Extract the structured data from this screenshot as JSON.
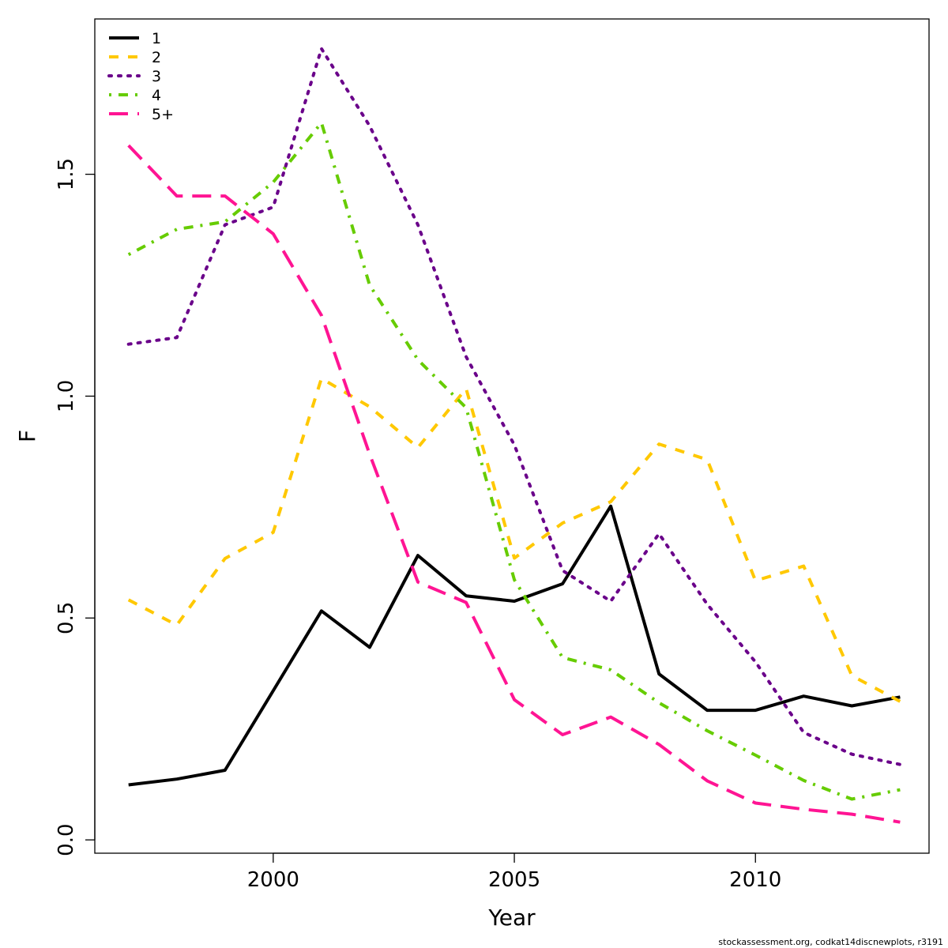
{
  "chart_data": {
    "type": "line",
    "title": "",
    "xlabel": "Year",
    "ylabel": "F",
    "xlim": [
      1996.3,
      2013.6
    ],
    "ylim": [
      -0.03,
      1.85
    ],
    "x_ticks": [
      2000,
      2005,
      2010
    ],
    "y_ticks": [
      0.0,
      0.5,
      1.0,
      1.5
    ],
    "y_tick_labels": [
      "0.0",
      "0.5",
      "1.0",
      "1.5"
    ],
    "legend_position": "top-left",
    "x": [
      1997,
      1998,
      1999,
      2000,
      2001,
      2002,
      2003,
      2004,
      2005,
      2006,
      2007,
      2008,
      2009,
      2010,
      2011,
      2012,
      2013
    ],
    "series": [
      {
        "name": "1",
        "color": "#000000",
        "dash": "solid",
        "values": [
          0.124,
          0.137,
          0.157,
          0.336,
          0.516,
          0.434,
          0.641,
          0.55,
          0.538,
          0.577,
          0.752,
          0.374,
          0.292,
          0.292,
          0.324,
          0.302,
          0.322
        ]
      },
      {
        "name": "2",
        "color": "#FFC800",
        "dash": "dashed",
        "values": [
          0.541,
          0.484,
          0.634,
          0.693,
          1.04,
          0.976,
          0.884,
          1.017,
          0.635,
          0.714,
          0.762,
          0.892,
          0.857,
          0.584,
          0.617,
          0.37,
          0.312
        ]
      },
      {
        "name": "3",
        "color": "#6A008A",
        "dash": "dotted",
        "values": [
          1.117,
          1.132,
          1.386,
          1.426,
          1.783,
          1.609,
          1.386,
          1.089,
          0.89,
          0.607,
          0.538,
          0.69,
          0.531,
          0.401,
          0.242,
          0.193,
          0.17
        ]
      },
      {
        "name": "4",
        "color": "#66CC00",
        "dash": "dotdash",
        "values": [
          1.319,
          1.376,
          1.393,
          1.482,
          1.616,
          1.25,
          1.082,
          0.974,
          0.586,
          0.411,
          0.383,
          0.309,
          0.246,
          0.191,
          0.134,
          0.092,
          0.113
        ]
      },
      {
        "name": "5+",
        "color": "#FF1493",
        "dash": "longdash",
        "values": [
          1.565,
          1.451,
          1.451,
          1.366,
          1.182,
          0.869,
          0.581,
          0.535,
          0.316,
          0.237,
          0.277,
          0.215,
          0.133,
          0.083,
          0.069,
          0.058,
          0.04
        ]
      }
    ]
  },
  "footer_note": "stockassessment.org, codkat14discnewplots, r3191"
}
